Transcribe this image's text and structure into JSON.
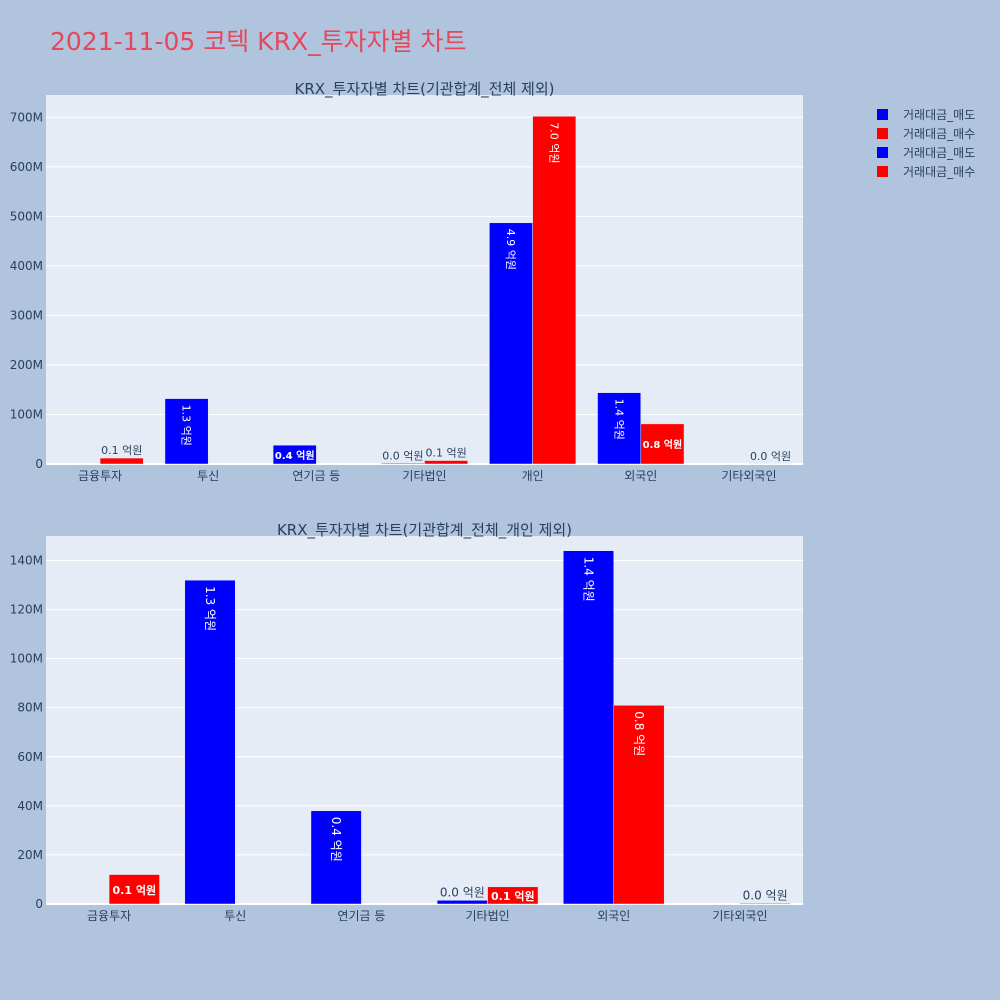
{
  "page_title": "2021-11-05 코텍 KRX_투자자별 차트",
  "colors": {
    "sell": "#0000ff",
    "buy": "#ff0000",
    "plot_bg": "#e5ecf6",
    "page_bg": "#b0c4de",
    "title": "#e8475a"
  },
  "legend": [
    {
      "label": "거래대금_매도",
      "color": "#0000ff"
    },
    {
      "label": "거래대금_매수",
      "color": "#ff0000"
    },
    {
      "label": "거래대금_매도",
      "color": "#0000ff"
    },
    {
      "label": "거래대금_매수",
      "color": "#ff0000"
    }
  ],
  "chart_data": [
    {
      "type": "bar",
      "title": "KRX_투자자별 차트(기관합계_전체 제외)",
      "categories": [
        "금융투자",
        "투신",
        "연기금 등",
        "기타법인",
        "개인",
        "외국인",
        "기타외국인"
      ],
      "series": [
        {
          "name": "거래대금_매도",
          "color": "#0000ff",
          "values": [
            0,
            132000000,
            38000000,
            1500000,
            487000000,
            144000000,
            0
          ],
          "labels": [
            "",
            "1.3 억원",
            "0.4 억원",
            "0.0 억원",
            "4.9 억원",
            "1.4 억원",
            ""
          ]
        },
        {
          "name": "거래대금_매수",
          "color": "#ff0000",
          "values": [
            12000000,
            0,
            0,
            7000000,
            702000000,
            81000000,
            300000
          ],
          "labels": [
            "0.1 억원",
            "",
            "",
            "0.1 억원",
            "7.0 억원",
            "0.8 억원",
            "0.0 억원"
          ]
        }
      ],
      "yticks": [
        0,
        100000000,
        200000000,
        300000000,
        400000000,
        500000000,
        600000000,
        700000000
      ],
      "ytick_labels": [
        "0",
        "100M",
        "200M",
        "300M",
        "400M",
        "500M",
        "600M",
        "700M"
      ],
      "ylim": [
        0,
        745000000
      ],
      "grid": true
    },
    {
      "type": "bar",
      "title": "KRX_투자자별 차트(기관합계_전체_개인 제외)",
      "categories": [
        "금융투자",
        "투신",
        "연기금 등",
        "기타법인",
        "외국인",
        "기타외국인"
      ],
      "series": [
        {
          "name": "거래대금_매도",
          "color": "#0000ff",
          "values": [
            0,
            132000000,
            38000000,
            1500000,
            144000000,
            0
          ],
          "labels": [
            "",
            "1.3 억원",
            "0.4 억원",
            "0.0 억원",
            "1.4 억원",
            ""
          ]
        },
        {
          "name": "거래대금_매수",
          "color": "#ff0000",
          "values": [
            12000000,
            0,
            0,
            7000000,
            81000000,
            300000
          ],
          "labels": [
            "0.1 억원",
            "",
            "",
            "0.1 억원",
            "0.8 억원",
            "0.0 억원"
          ]
        }
      ],
      "yticks": [
        0,
        20000000,
        40000000,
        60000000,
        80000000,
        100000000,
        120000000,
        140000000
      ],
      "ytick_labels": [
        "0",
        "20M",
        "40M",
        "60M",
        "80M",
        "100M",
        "120M",
        "140M"
      ],
      "ylim": [
        0,
        150000000
      ],
      "grid": true
    }
  ]
}
